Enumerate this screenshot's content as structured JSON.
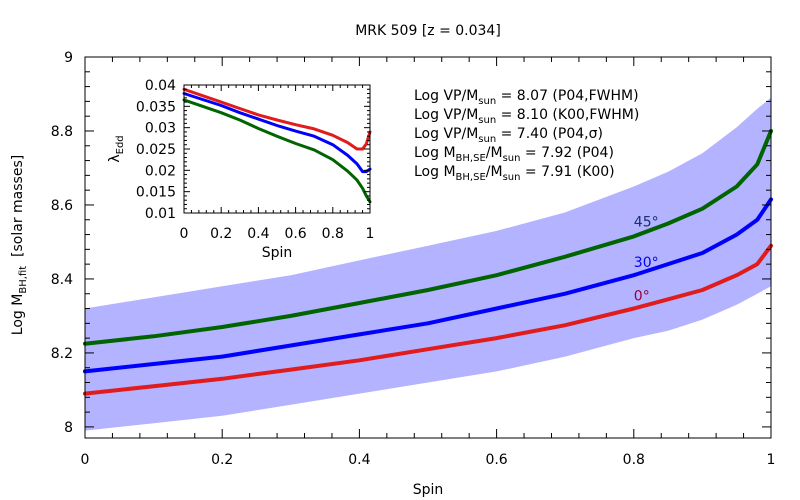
{
  "chart_data": [
    {
      "type": "line",
      "title": "MRK 509  [z = 0.034]",
      "xlabel": "Spin",
      "ylabel": {
        "main": "Log M",
        "sub": "BH,fit",
        "tail": "  [solar masses]"
      },
      "xlim": [
        0,
        1
      ],
      "ylim": [
        7.97,
        9.0
      ],
      "xticks": [
        "0",
        "0.2",
        "0.4",
        "0.6",
        "0.8",
        "1"
      ],
      "yticks": [
        "8",
        "8.2",
        "8.4",
        "8.6",
        "8.8",
        "9"
      ],
      "x": [
        0,
        0.1,
        0.2,
        0.3,
        0.4,
        0.5,
        0.6,
        0.7,
        0.8,
        0.85,
        0.9,
        0.95,
        0.98,
        1.0
      ],
      "band": {
        "color": "#b3b3ff",
        "lower": [
          7.99,
          8.01,
          8.03,
          8.06,
          8.09,
          8.12,
          8.15,
          8.19,
          8.24,
          8.26,
          8.29,
          8.33,
          8.36,
          8.38
        ],
        "upper": [
          8.32,
          8.35,
          8.38,
          8.41,
          8.45,
          8.49,
          8.53,
          8.58,
          8.65,
          8.69,
          8.74,
          8.81,
          8.86,
          8.89
        ]
      },
      "series": [
        {
          "name": "45°",
          "color": "#006400",
          "values": [
            8.225,
            8.245,
            8.27,
            8.3,
            8.335,
            8.37,
            8.41,
            8.46,
            8.515,
            8.55,
            8.59,
            8.65,
            8.71,
            8.8
          ]
        },
        {
          "name": "30°",
          "color": "#0000ff",
          "values": [
            8.15,
            8.17,
            8.19,
            8.22,
            8.25,
            8.28,
            8.32,
            8.36,
            8.41,
            8.44,
            8.47,
            8.52,
            8.56,
            8.615
          ]
        },
        {
          "name": "0°",
          "color": "#e01c1c",
          "values": [
            8.09,
            8.11,
            8.13,
            8.155,
            8.18,
            8.21,
            8.24,
            8.275,
            8.32,
            8.345,
            8.37,
            8.41,
            8.44,
            8.49
          ]
        }
      ],
      "curve_labels": [
        {
          "text": "45°",
          "color": "#1a3070"
        },
        {
          "text": "30°",
          "color": "#0000ff"
        },
        {
          "text": "0°",
          "color": "#990033"
        }
      ],
      "annotations": [
        {
          "pre": "Log VP/M",
          "sub": "sun",
          "post": " = 8.07 (P04,FWHM)"
        },
        {
          "pre": "Log VP/M",
          "sub": "sun",
          "post": " = 8.10 (K00,FWHM)"
        },
        {
          "pre": "Log VP/M",
          "sub": "sun",
          "post": " = 7.40 (P04,σ)"
        },
        {
          "pre": "Log M",
          "sub": "BH,SE",
          "post": "/M",
          "sub2": "sun",
          "post2": " = 7.92 (P04)"
        },
        {
          "pre": "Log M",
          "sub": "BH,SE",
          "post": "/M",
          "sub2": "sun",
          "post2": " = 7.91 (K00)"
        }
      ]
    },
    {
      "type": "line",
      "xlabel": "Spin",
      "ylabel": {
        "main": "λ",
        "sub": "Edd"
      },
      "xlim": [
        0,
        1
      ],
      "ylim": [
        0.01,
        0.04
      ],
      "xticks": [
        "0",
        "0.2",
        "0.4",
        "0.6",
        "0.8",
        "1"
      ],
      "yticks": [
        "0.01",
        "0.015",
        "0.02",
        "0.025",
        "0.03",
        "0.035",
        "0.04"
      ],
      "x": [
        0,
        0.1,
        0.2,
        0.3,
        0.4,
        0.5,
        0.6,
        0.7,
        0.8,
        0.88,
        0.93,
        0.96,
        0.98,
        1.0
      ],
      "series": [
        {
          "name": "0°",
          "color": "#e01c1c",
          "values": [
            0.039,
            0.0375,
            0.036,
            0.0345,
            0.033,
            0.0318,
            0.0307,
            0.0297,
            0.0282,
            0.0265,
            0.025,
            0.025,
            0.0262,
            0.029
          ]
        },
        {
          "name": "30°",
          "color": "#0000ff",
          "values": [
            0.038,
            0.0366,
            0.0352,
            0.0335,
            0.032,
            0.0305,
            0.0292,
            0.028,
            0.026,
            0.0235,
            0.0215,
            0.0197,
            0.0197,
            0.0203
          ]
        },
        {
          "name": "45°",
          "color": "#006400",
          "values": [
            0.0365,
            0.035,
            0.0335,
            0.0318,
            0.0298,
            0.028,
            0.0263,
            0.0248,
            0.0225,
            0.0198,
            0.0177,
            0.0158,
            0.014,
            0.0126
          ]
        }
      ]
    }
  ]
}
